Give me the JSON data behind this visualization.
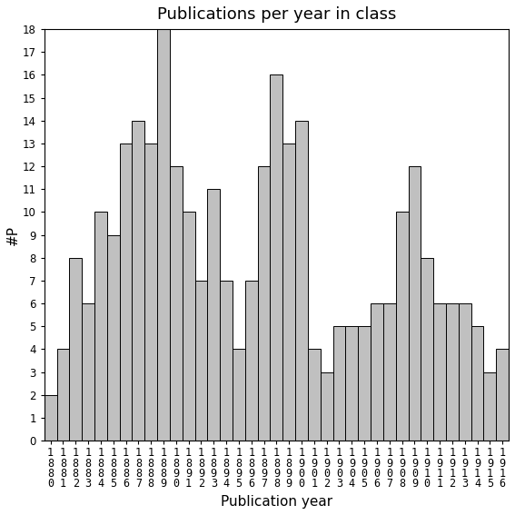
{
  "title": "Publications per year in class",
  "xlabel": "Publication year",
  "ylabel": "#P",
  "years": [
    1880,
    1881,
    1882,
    1883,
    1884,
    1885,
    1886,
    1887,
    1888,
    1889,
    1890,
    1891,
    1892,
    1893,
    1894,
    1895,
    1896,
    1897,
    1898,
    1899,
    1900,
    1901,
    1902,
    1903,
    1904,
    1905,
    1906,
    1907,
    1908,
    1909,
    1910,
    1911,
    1912,
    1913,
    1914,
    1915,
    1916
  ],
  "values": [
    2,
    4,
    8,
    6,
    10,
    9,
    13,
    14,
    13,
    18,
    12,
    10,
    7,
    11,
    7,
    4,
    7,
    12,
    16,
    13,
    14,
    4,
    3,
    5,
    5,
    5,
    6,
    6,
    10,
    12,
    8,
    6,
    6,
    6,
    5,
    3,
    4
  ],
  "bar_color": "#c0c0c0",
  "bar_edgecolor": "#000000",
  "ylim": [
    0,
    18
  ],
  "yticks": [
    0,
    1,
    2,
    3,
    4,
    5,
    6,
    7,
    8,
    9,
    10,
    11,
    12,
    13,
    14,
    15,
    16,
    17,
    18
  ],
  "title_fontsize": 13,
  "axis_label_fontsize": 11,
  "tick_fontsize": 8.5,
  "bg_color": "#ffffff"
}
